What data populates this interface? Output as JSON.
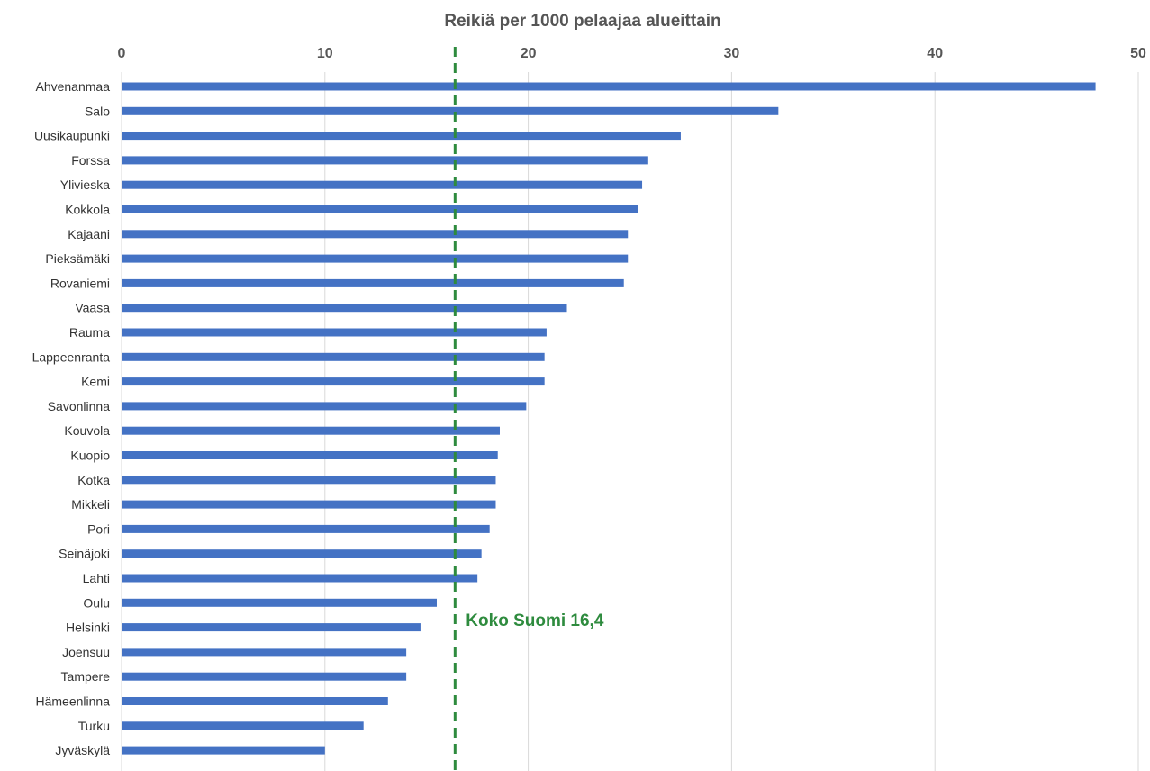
{
  "chart_data": {
    "type": "bar",
    "orientation": "horizontal",
    "title": "Reikiä per 1000 pelaajaa alueittain",
    "xlabel": "",
    "ylabel": "",
    "xlim": [
      0,
      50
    ],
    "xticks": [
      "0",
      "10",
      "20",
      "30",
      "40",
      "50"
    ],
    "x_axis_position": "top",
    "grid": true,
    "categories": [
      "Ahvenanmaa",
      "Salo",
      "Uusikaupunki",
      "Forssa",
      "Ylivieska",
      "Kokkola",
      "Kajaani",
      "Pieksämäki",
      "Rovaniemi",
      "Vaasa",
      "Rauma",
      "Lappeenranta",
      "Kemi",
      "Savonlinna",
      "Kouvola",
      "Kuopio",
      "Kotka",
      "Mikkeli",
      "Pori",
      "Seinäjoki",
      "Lahti",
      "Oulu",
      "Helsinki",
      "Joensuu",
      "Tampere",
      "Hämeenlinna",
      "Turku",
      "Jyväskylä"
    ],
    "values": [
      47.9,
      32.3,
      27.5,
      25.9,
      25.6,
      25.4,
      24.9,
      24.9,
      24.7,
      21.9,
      20.9,
      20.8,
      20.8,
      19.9,
      18.6,
      18.5,
      18.4,
      18.4,
      18.1,
      17.7,
      17.5,
      15.5,
      14.7,
      14.0,
      14.0,
      13.1,
      11.9,
      10.0
    ],
    "bar_color": "#4472C4",
    "reference_line": {
      "value": 16.4,
      "label": "Koko Suomi 16,4",
      "color": "#2E8B3E",
      "style": "dashed"
    }
  }
}
